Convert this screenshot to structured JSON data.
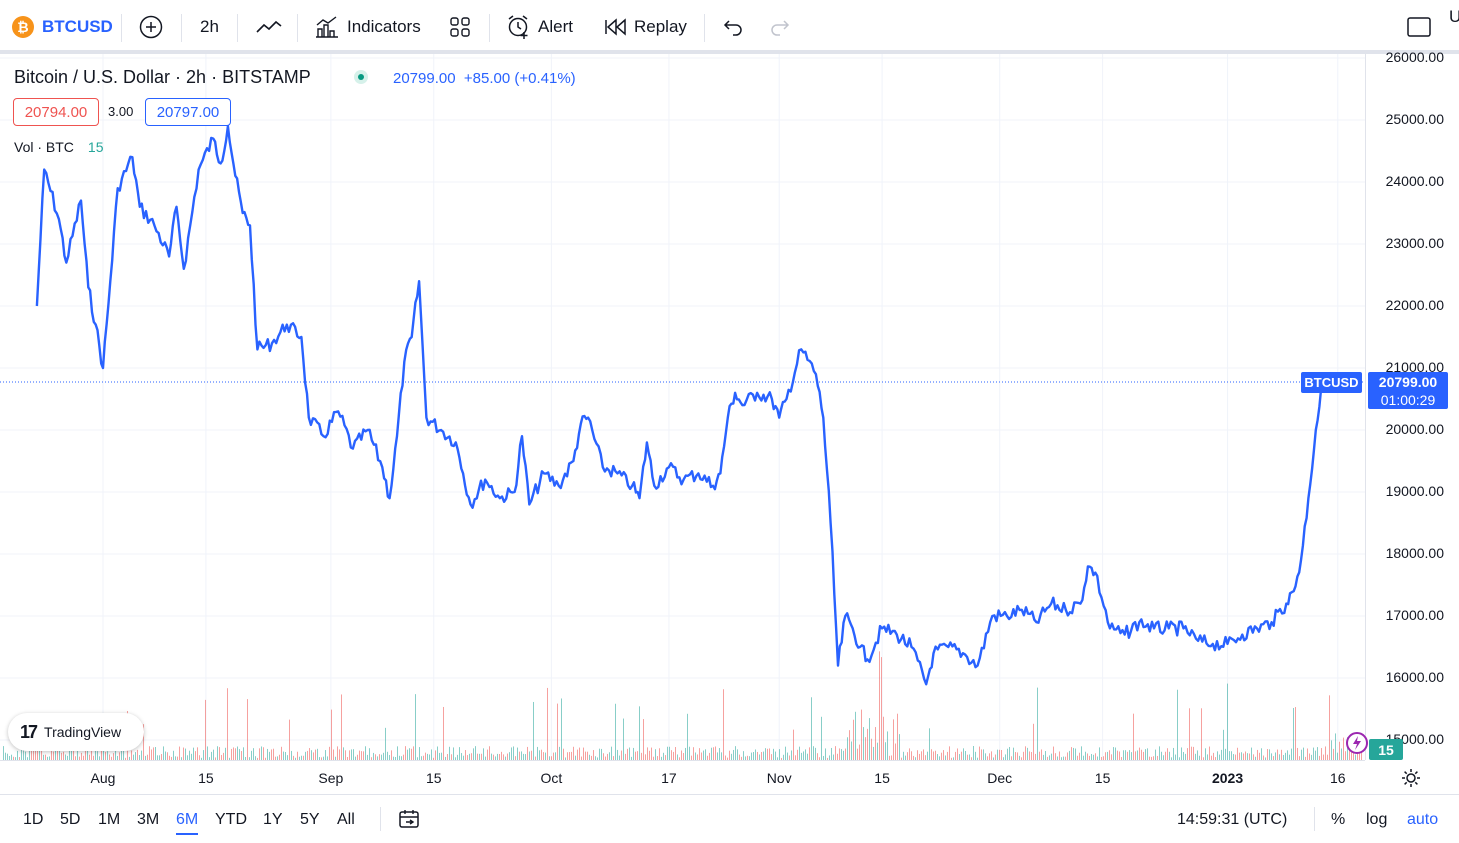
{
  "toolbar": {
    "symbol": "BTCUSD",
    "symbol_badge": "₿",
    "interval": "2h",
    "indicators_label": "Indicators",
    "alert_label": "Alert",
    "replay_label": "Replay",
    "right_clip": "U"
  },
  "legend": {
    "title": "Bitcoin / U.S. Dollar · 2h · BITSTAMP",
    "price": "20799.00",
    "change": "+85.00 (+0.41%)",
    "bid": "20794.00",
    "spread": "3.00",
    "ask": "20797.00",
    "vol_label": "Vol · BTC",
    "vol_value": "15"
  },
  "logo": {
    "mark": "17",
    "name": "TradingView"
  },
  "price_axis": {
    "ticks": [
      "26000.00",
      "25000.00",
      "24000.00",
      "23000.00",
      "22000.00",
      "21000.00",
      "20000.00",
      "19000.00",
      "18000.00",
      "17000.00",
      "16000.00",
      "15000.00"
    ],
    "last_price": "20799.00",
    "countdown": "01:00:29",
    "symbol_tag": "BTCUSD",
    "volume_tag": "15"
  },
  "time_axis": {
    "ticks": [
      "Aug",
      "15",
      "Sep",
      "15",
      "Oct",
      "17",
      "Nov",
      "15",
      "Dec",
      "15",
      "2023",
      "16"
    ]
  },
  "bottom_bar": {
    "ranges": [
      "1D",
      "5D",
      "1M",
      "3M",
      "6M",
      "YTD",
      "1Y",
      "5Y",
      "All"
    ],
    "active_range": "6M",
    "clock": "14:59:31 (UTC)",
    "percent": "%",
    "log": "log",
    "auto": "auto"
  },
  "colors": {
    "line": "#2962ff",
    "up_volume": "#26a69a",
    "down_volume": "#ef5350",
    "grid": "#f0f3fa"
  },
  "chart_data": {
    "type": "line",
    "title": "Bitcoin / U.S. Dollar · 2h · BITSTAMP",
    "xlabel": "",
    "ylabel": "",
    "ylim": [
      14700,
      26000
    ],
    "grid": true,
    "series": [
      {
        "name": "BTCUSD",
        "points": [
          [
            "2022-07-23",
            22000
          ],
          [
            "2022-07-24",
            24200
          ],
          [
            "2022-07-26",
            23400
          ],
          [
            "2022-07-27",
            22700
          ],
          [
            "2022-07-29",
            23700
          ],
          [
            "2022-07-30",
            22300
          ],
          [
            "2022-07-31",
            21700
          ],
          [
            "2022-08-01",
            21000
          ],
          [
            "2022-08-02",
            22400
          ],
          [
            "2022-08-03",
            23900
          ],
          [
            "2022-08-05",
            24400
          ],
          [
            "2022-08-06",
            23600
          ],
          [
            "2022-08-08",
            23300
          ],
          [
            "2022-08-10",
            22800
          ],
          [
            "2022-08-11",
            23600
          ],
          [
            "2022-08-12",
            22600
          ],
          [
            "2022-08-14",
            24200
          ],
          [
            "2022-08-16",
            24700
          ],
          [
            "2022-08-17",
            24300
          ],
          [
            "2022-08-18",
            24900
          ],
          [
            "2022-08-19",
            24100
          ],
          [
            "2022-08-20",
            23500
          ],
          [
            "2022-08-21",
            23300
          ],
          [
            "2022-08-22",
            21300
          ],
          [
            "2022-08-24",
            21400
          ],
          [
            "2022-08-26",
            21700
          ],
          [
            "2022-08-28",
            21500
          ],
          [
            "2022-08-29",
            20200
          ],
          [
            "2022-08-31",
            19900
          ],
          [
            "2022-09-02",
            20300
          ],
          [
            "2022-09-04",
            19700
          ],
          [
            "2022-09-06",
            20000
          ],
          [
            "2022-09-08",
            19400
          ],
          [
            "2022-09-09",
            18900
          ],
          [
            "2022-09-10",
            19900
          ],
          [
            "2022-09-11",
            21100
          ],
          [
            "2022-09-12",
            21500
          ],
          [
            "2022-09-13",
            22400
          ],
          [
            "2022-09-14",
            20200
          ],
          [
            "2022-09-16",
            20000
          ],
          [
            "2022-09-18",
            19800
          ],
          [
            "2022-09-19",
            19300
          ],
          [
            "2022-09-20",
            18800
          ],
          [
            "2022-09-22",
            19200
          ],
          [
            "2022-09-24",
            18900
          ],
          [
            "2022-09-26",
            19000
          ],
          [
            "2022-09-27",
            19900
          ],
          [
            "2022-09-28",
            18800
          ],
          [
            "2022-09-30",
            19300
          ],
          [
            "2022-10-02",
            19100
          ],
          [
            "2022-10-04",
            19500
          ],
          [
            "2022-10-05",
            20100
          ],
          [
            "2022-10-06",
            20200
          ],
          [
            "2022-10-08",
            19400
          ],
          [
            "2022-10-10",
            19300
          ],
          [
            "2022-10-12",
            19100
          ],
          [
            "2022-10-13",
            18900
          ],
          [
            "2022-10-14",
            19800
          ],
          [
            "2022-10-15",
            19100
          ],
          [
            "2022-10-17",
            19400
          ],
          [
            "2022-10-19",
            19200
          ],
          [
            "2022-10-21",
            19300
          ],
          [
            "2022-10-23",
            19100
          ],
          [
            "2022-10-24",
            19300
          ],
          [
            "2022-10-25",
            20200
          ],
          [
            "2022-10-26",
            20600
          ],
          [
            "2022-10-27",
            20400
          ],
          [
            "2022-10-29",
            20600
          ],
          [
            "2022-10-31",
            20500
          ],
          [
            "2022-11-01",
            20200
          ],
          [
            "2022-11-02",
            20500
          ],
          [
            "2022-11-04",
            21300
          ],
          [
            "2022-11-06",
            20900
          ],
          [
            "2022-11-07",
            20200
          ],
          [
            "2022-11-08",
            18500
          ],
          [
            "2022-11-09",
            16200
          ],
          [
            "2022-11-10",
            17000
          ],
          [
            "2022-11-11",
            16800
          ],
          [
            "2022-11-12",
            16500
          ],
          [
            "2022-11-13",
            16300
          ],
          [
            "2022-11-15",
            16800
          ],
          [
            "2022-11-17",
            16700
          ],
          [
            "2022-11-19",
            16500
          ],
          [
            "2022-11-21",
            15900
          ],
          [
            "2022-11-22",
            16400
          ],
          [
            "2022-11-24",
            16500
          ],
          [
            "2022-11-26",
            16400
          ],
          [
            "2022-11-28",
            16200
          ],
          [
            "2022-11-30",
            17000
          ],
          [
            "2022-12-02",
            17000
          ],
          [
            "2022-12-04",
            17100
          ],
          [
            "2022-12-06",
            16900
          ],
          [
            "2022-12-08",
            17200
          ],
          [
            "2022-12-10",
            17100
          ],
          [
            "2022-12-12",
            17200
          ],
          [
            "2022-12-13",
            17800
          ],
          [
            "2022-12-14",
            17700
          ],
          [
            "2022-12-16",
            16800
          ],
          [
            "2022-12-18",
            16700
          ],
          [
            "2022-12-20",
            16900
          ],
          [
            "2022-12-22",
            16800
          ],
          [
            "2022-12-24",
            16800
          ],
          [
            "2022-12-26",
            16800
          ],
          [
            "2022-12-28",
            16600
          ],
          [
            "2022-12-30",
            16550
          ],
          [
            "2023-01-01",
            16550
          ],
          [
            "2023-01-03",
            16700
          ],
          [
            "2023-01-05",
            16800
          ],
          [
            "2023-01-07",
            16900
          ],
          [
            "2023-01-09",
            17200
          ],
          [
            "2023-01-10",
            17400
          ],
          [
            "2023-01-11",
            17900
          ],
          [
            "2023-01-12",
            18900
          ],
          [
            "2023-01-13",
            20000
          ],
          [
            "2023-01-14",
            20799
          ]
        ]
      }
    ]
  }
}
